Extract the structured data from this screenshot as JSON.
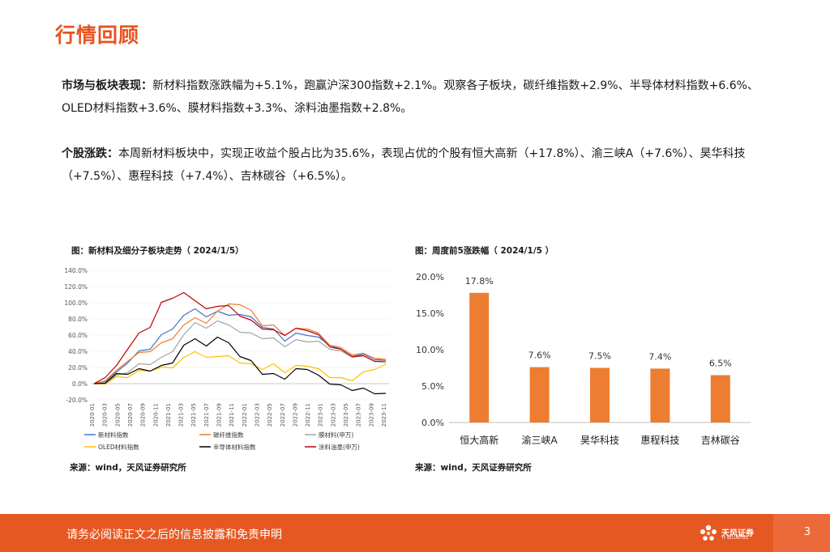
{
  "title": "行情回顾",
  "paragraph1": {
    "label": "市场与板块表现：",
    "text": "新材料指数涨跌幅为+5.1%，跑赢沪深300指数+2.1%。观察各子板块，碳纤维指数+2.9%、半导体材料指数+6.6%、OLED材料指数+3.6%、膜材料指数+3.3%、涂料油墨指数+2.8%。"
  },
  "paragraph2": {
    "label": "个股涨跌：",
    "text": "本周新材料板块中，实现正收益个股占比为35.6%，表现占优的个股有恒大高新（+17.8%）、渝三峡A（+7.6%）、昊华科技（+7.5%）、惠程科技（+7.4%）、吉林碳谷（+6.5%）。"
  },
  "figure1": {
    "title": "图：新材料及细分子板块走势（ 2024/1/5）",
    "source": "来源：wind，天风证券研究所"
  },
  "figure2": {
    "title": "图：周度前5涨跌幅（ 2024/1/5 ）",
    "source": "来源：wind，天风证券研究所"
  },
  "chart_data": [
    {
      "type": "line",
      "yticks": [
        "140.0%",
        "120.0%",
        "100.0%",
        "80.0%",
        "60.0%",
        "40.0%",
        "20.0%",
        "0.0%",
        "-20.0%"
      ],
      "ylim": [
        -20,
        140
      ],
      "x_ticks": [
        "2020-01",
        "2020-03",
        "2020-05",
        "2020-07",
        "2020-09",
        "2020-11",
        "2021-01",
        "2021-03",
        "2021-05",
        "2021-07",
        "2021-09",
        "2021-11",
        "2022-01",
        "2022-03",
        "2022-05",
        "2022-07",
        "2022-09",
        "2022-11",
        "2023-01",
        "2023-03",
        "2023-05",
        "2023-07",
        "2023-09",
        "2023-11"
      ],
      "series": [
        {
          "name": "新材料指数",
          "color": "#4472c4",
          "values": [
            0,
            5,
            12,
            28,
            38,
            45,
            58,
            70,
            82,
            95,
            80,
            92,
            82,
            88,
            80,
            72,
            65,
            55,
            60,
            62,
            55,
            50,
            40,
            36,
            34,
            32,
            30
          ]
        },
        {
          "name": "碳纤维指数",
          "color": "#ed7d31",
          "values": [
            0,
            6,
            14,
            30,
            36,
            42,
            48,
            58,
            70,
            84,
            72,
            92,
            96,
            100,
            88,
            74,
            70,
            62,
            66,
            70,
            60,
            50,
            42,
            38,
            35,
            34,
            30
          ]
        },
        {
          "name": "膜材料(申万)",
          "color": "#a5a5a5",
          "values": [
            0,
            3,
            8,
            16,
            22,
            26,
            30,
            42,
            58,
            78,
            66,
            80,
            70,
            66,
            60,
            58,
            54,
            48,
            52,
            54,
            50,
            45,
            38,
            35,
            32,
            30,
            26
          ]
        },
        {
          "name": "OLED材料指数",
          "color": "#ffc000",
          "values": [
            0,
            2,
            6,
            10,
            14,
            18,
            18,
            22,
            30,
            42,
            30,
            36,
            32,
            28,
            22,
            20,
            22,
            16,
            20,
            24,
            16,
            10,
            5,
            6,
            12,
            20,
            24
          ]
        },
        {
          "name": "半导体材料指数",
          "color": "#000000",
          "values": [
            0,
            3,
            10,
            14,
            16,
            18,
            20,
            28,
            45,
            58,
            44,
            60,
            48,
            36,
            26,
            14,
            10,
            8,
            16,
            20,
            8,
            2,
            -4,
            -6,
            -8,
            -10,
            -12
          ]
        },
        {
          "name": "涂料油墨(申万)",
          "color": "#c00000",
          "values": [
            0,
            10,
            20,
            45,
            60,
            72,
            98,
            108,
            110,
            105,
            90,
            98,
            94,
            86,
            76,
            70,
            64,
            62,
            66,
            68,
            58,
            48,
            40,
            36,
            32,
            30,
            28
          ]
        }
      ]
    },
    {
      "type": "bar",
      "categories": [
        "恒大高新",
        "渝三峡A",
        "昊华科技",
        "惠程科技",
        "吉林碳谷"
      ],
      "values": [
        17.8,
        7.6,
        7.5,
        7.4,
        6.5
      ],
      "labels": [
        "17.8%",
        "7.6%",
        "7.5%",
        "7.4%",
        "6.5%"
      ],
      "yticks": [
        "20.0%",
        "15.0%",
        "10.0%",
        "5.0%",
        "0.0%"
      ],
      "ylim": [
        0,
        20
      ],
      "color": "#ed7d31"
    }
  ],
  "footer": {
    "disclaimer": "请务必阅读正文之后的信息披露和免责申明",
    "page": "3",
    "logo_text": "天风证券",
    "logo_sub": "TF SECURITIES"
  },
  "colors": {
    "accent": "#e8531f",
    "footer": "#e65822",
    "bar": "#ed7d31"
  }
}
